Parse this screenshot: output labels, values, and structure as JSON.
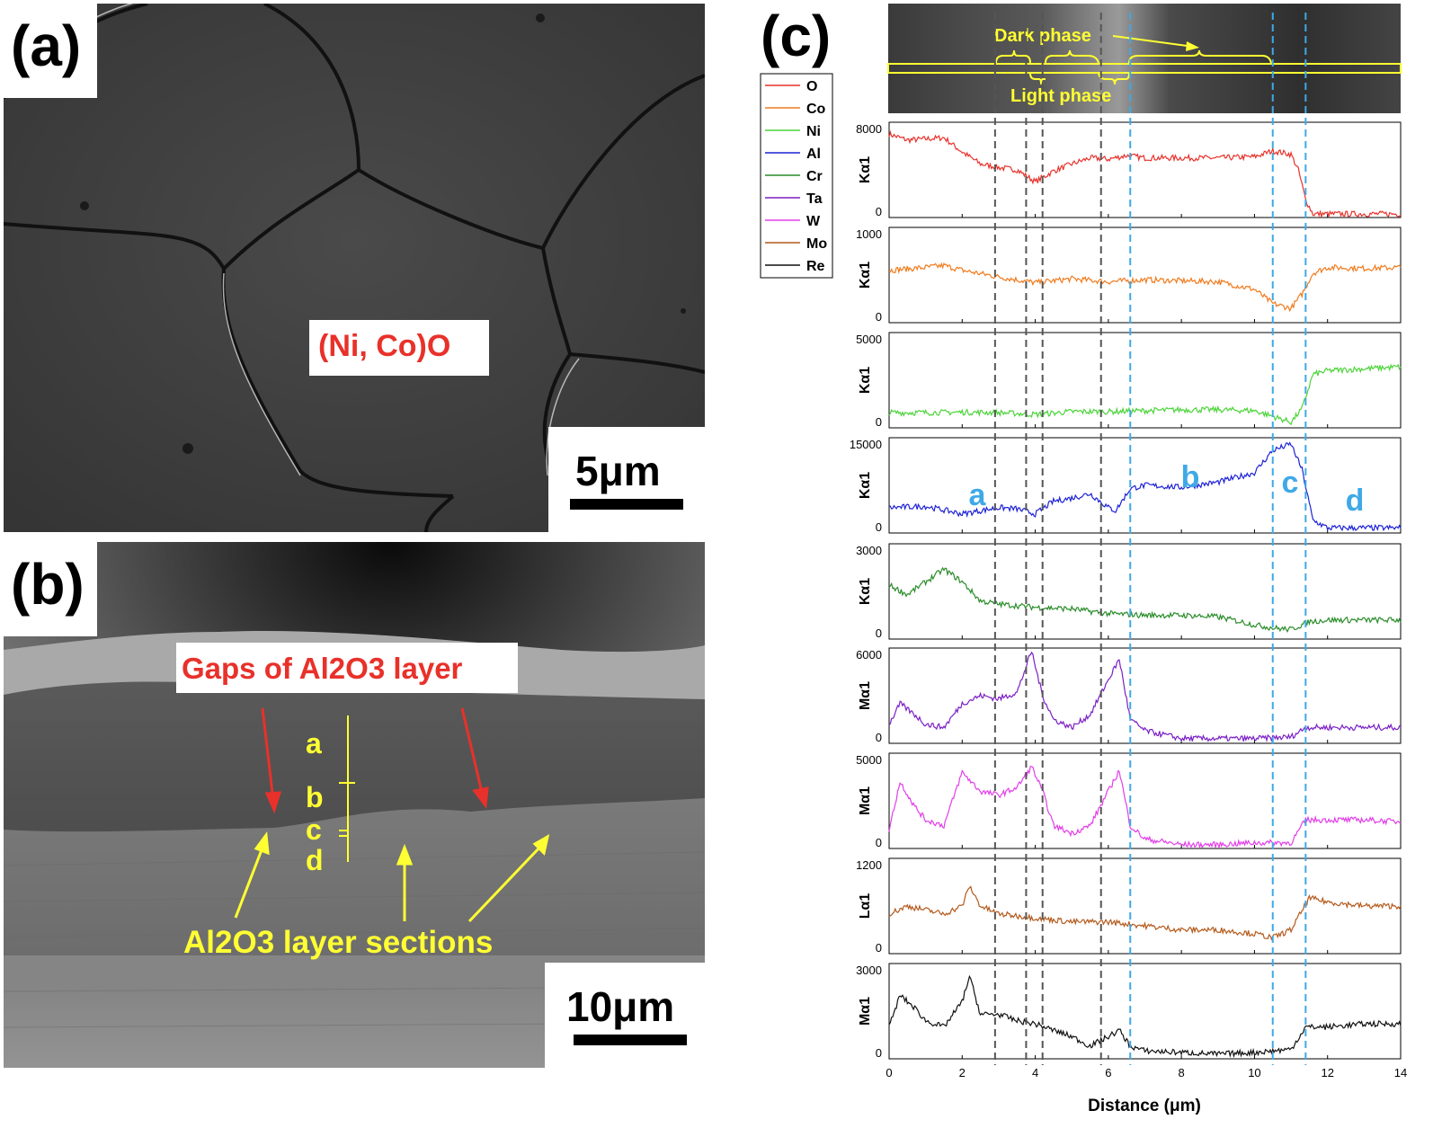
{
  "panel_a": {
    "letter": "(a)",
    "phase_label": "(Ni, Co)O",
    "scale_bar": "5μm"
  },
  "panel_b": {
    "letter": "(b)",
    "gaps_label": "Gaps of Al2O3 layer",
    "sections_label": "Al2O3 layer sections",
    "markers": [
      "a",
      "b",
      "c",
      "d"
    ],
    "scale_bar": "10μm"
  },
  "panel_c": {
    "letter": "(c)",
    "dark_phase_label": "Dark phase",
    "light_phase_label": "Light phase",
    "region_labels": [
      "a",
      "b",
      "c",
      "d"
    ]
  },
  "colors": {
    "red_label": "#e8312a",
    "yellow_label": "#ffff33",
    "blue_region": "#3fa9e6",
    "dashed_gray": "#555555",
    "dashed_blue": "#3fa9e6"
  },
  "chart_data": {
    "type": "line",
    "xlabel": "Distance (μm)",
    "xlim": [
      0,
      14
    ],
    "x_ticks": [
      0,
      2,
      4,
      6,
      8,
      10,
      12,
      14
    ],
    "dashed_gray_x": [
      2.9,
      3.75,
      4.2,
      5.8
    ],
    "dashed_blue_x": [
      6.6,
      10.5,
      11.4
    ],
    "legend": [
      {
        "name": "O",
        "color": "#e8312a"
      },
      {
        "name": "Co",
        "color": "#f07b1e"
      },
      {
        "name": "Ni",
        "color": "#4cd43a"
      },
      {
        "name": "Al",
        "color": "#1d22d6"
      },
      {
        "name": "Cr",
        "color": "#2a8c2a"
      },
      {
        "name": "Ta",
        "color": "#7a1fc6"
      },
      {
        "name": "W",
        "color": "#e23ee8"
      },
      {
        "name": "Mo",
        "color": "#b45a1c"
      },
      {
        "name": "Re",
        "color": "#111111"
      }
    ],
    "series": [
      {
        "name": "O",
        "color": "#e8312a",
        "ylabel": "Kα1",
        "ylim": [
          0,
          8000
        ],
        "ytick_labels": [
          "8000",
          "0"
        ],
        "x": [
          0,
          0.5,
          1,
          1.5,
          2,
          2.5,
          3,
          3.5,
          4,
          4.5,
          5,
          5.5,
          6,
          6.5,
          7,
          8,
          9,
          10,
          10.5,
          11,
          11.2,
          11.4,
          11.6,
          12,
          13,
          14
        ],
        "y": [
          7000,
          6500,
          6600,
          6700,
          5500,
          4500,
          4200,
          4000,
          3000,
          3900,
          4500,
          5000,
          4900,
          5200,
          5000,
          5000,
          5000,
          5100,
          5600,
          5300,
          4000,
          1500,
          300,
          300,
          300,
          300
        ]
      },
      {
        "name": "Co",
        "color": "#f07b1e",
        "ylabel": "Kα1",
        "ylim": [
          0,
          1000
        ],
        "ytick_labels": [
          "1000",
          "0"
        ],
        "x": [
          0,
          1,
          1.5,
          2,
          3,
          4,
          5,
          6,
          7,
          8,
          9,
          10,
          10.5,
          11,
          11.3,
          11.6,
          12,
          13,
          14
        ],
        "y": [
          550,
          580,
          600,
          550,
          480,
          420,
          460,
          430,
          450,
          440,
          430,
          350,
          200,
          150,
          300,
          520,
          580,
          570,
          580
        ]
      },
      {
        "name": "Ni",
        "color": "#4cd43a",
        "ylabel": "Kα1",
        "ylim": [
          0,
          5000
        ],
        "ytick_labels": [
          "5000",
          "0"
        ],
        "x": [
          0,
          1,
          2,
          3,
          4,
          5,
          6,
          7,
          8,
          9,
          10,
          10.5,
          11,
          11.3,
          11.6,
          12,
          13,
          14
        ],
        "y": [
          800,
          800,
          820,
          800,
          700,
          850,
          850,
          900,
          950,
          950,
          900,
          600,
          300,
          1000,
          2800,
          3000,
          3100,
          3200
        ]
      },
      {
        "name": "Al",
        "color": "#1d22d6",
        "ylabel": "Kα1",
        "ylim": [
          0,
          15000
        ],
        "ytick_labels": [
          "15000",
          "0"
        ],
        "x": [
          0,
          1,
          2,
          3,
          3.5,
          4,
          4.5,
          5,
          5.5,
          6,
          6.2,
          6.6,
          7,
          8,
          9,
          10,
          10.5,
          11,
          11.3,
          11.6,
          12,
          13,
          14
        ],
        "y": [
          4000,
          4200,
          3000,
          4000,
          3800,
          3000,
          5000,
          5500,
          6200,
          4000,
          3500,
          7000,
          7500,
          7200,
          8000,
          9500,
          13000,
          14000,
          10000,
          2000,
          800,
          800,
          800
        ]
      },
      {
        "name": "Cr",
        "color": "#2a8c2a",
        "ylabel": "Kα1",
        "ylim": [
          0,
          3000
        ],
        "ytick_labels": [
          "3000",
          "0"
        ],
        "x": [
          0,
          0.5,
          1,
          1.5,
          2,
          2.5,
          3,
          4,
          5,
          6,
          7,
          8,
          9,
          10,
          10.5,
          11,
          11.5,
          12,
          13,
          14
        ],
        "y": [
          1700,
          1400,
          1800,
          2200,
          1800,
          1200,
          1100,
          1000,
          950,
          800,
          750,
          750,
          700,
          450,
          350,
          300,
          550,
          600,
          600,
          600
        ]
      },
      {
        "name": "Ta",
        "color": "#7a1fc6",
        "ylabel": "Mα1",
        "ylim": [
          0,
          6000
        ],
        "ytick_labels": [
          "6000",
          "0"
        ],
        "x": [
          0,
          0.3,
          0.7,
          1,
          1.5,
          2,
          2.5,
          3,
          3.5,
          3.9,
          4.2,
          4.5,
          5,
          5.5,
          6,
          6.3,
          6.6,
          7,
          8,
          9,
          10,
          11,
          11.4,
          12,
          13,
          14
        ],
        "y": [
          1200,
          2500,
          1800,
          1200,
          1000,
          2500,
          3000,
          2800,
          3200,
          5800,
          3000,
          1500,
          1000,
          1800,
          4000,
          5300,
          1500,
          800,
          300,
          300,
          300,
          400,
          1000,
          1000,
          1000,
          1000
        ]
      },
      {
        "name": "W",
        "color": "#e23ee8",
        "ylabel": "Mα1",
        "ylim": [
          0,
          5000
        ],
        "ytick_labels": [
          "5000",
          "0"
        ],
        "x": [
          0,
          0.3,
          0.7,
          1,
          1.5,
          2,
          2.5,
          3,
          3.5,
          3.9,
          4.2,
          4.5,
          5,
          5.5,
          6,
          6.3,
          6.6,
          7,
          8,
          9,
          10,
          11,
          11.4,
          12,
          13,
          14
        ],
        "y": [
          1000,
          3500,
          2200,
          1500,
          1200,
          4000,
          3000,
          2800,
          3200,
          4300,
          3000,
          1200,
          800,
          1200,
          3000,
          4100,
          1200,
          500,
          200,
          200,
          300,
          300,
          1500,
          1500,
          1500,
          1400
        ]
      },
      {
        "name": "Mo",
        "color": "#b45a1c",
        "ylabel": "Lα1",
        "ylim": [
          0,
          1200
        ],
        "ytick_labels": [
          "1200",
          "0"
        ],
        "x": [
          0,
          0.5,
          1,
          1.5,
          2,
          2.2,
          2.5,
          3,
          4,
          5,
          6,
          7,
          8,
          9,
          10,
          10.5,
          11,
          11.5,
          12,
          13,
          14
        ],
        "y": [
          500,
          600,
          550,
          500,
          600,
          850,
          600,
          500,
          450,
          400,
          400,
          350,
          300,
          300,
          250,
          200,
          300,
          700,
          650,
          600,
          600
        ]
      },
      {
        "name": "Re",
        "color": "#111111",
        "ylabel": "Mα1",
        "ylim": [
          0,
          3000
        ],
        "ytick_labels": [
          "3000",
          "0"
        ],
        "x": [
          0,
          0.3,
          0.7,
          1,
          1.5,
          2,
          2.2,
          2.5,
          3,
          3.5,
          4,
          4.5,
          5,
          5.5,
          6,
          6.3,
          6.6,
          7,
          8,
          9,
          10,
          11,
          11.4,
          12,
          13,
          14
        ],
        "y": [
          1000,
          2000,
          1600,
          1200,
          1000,
          1800,
          2600,
          1400,
          1400,
          1200,
          1100,
          900,
          700,
          400,
          700,
          900,
          400,
          250,
          200,
          150,
          200,
          300,
          1000,
          1000,
          1100,
          1100
        ]
      }
    ]
  }
}
